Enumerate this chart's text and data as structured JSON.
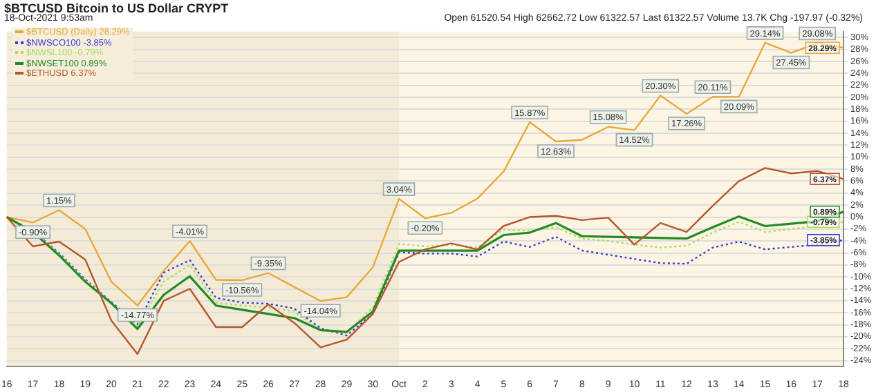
{
  "chart_data": {
    "type": "line",
    "title": "$BTCUSD Bitcoin to US Dollar CRYPT",
    "subtitle": "18-Oct-2021 9:53am",
    "annotations": [
      "Open 61520.54 High 62662.72 Low 61322.57 Last 61322.57 Volume 13.7K Chg -197.97 (-0.32%)"
    ],
    "categories": [
      "16",
      "17",
      "18",
      "19",
      "20",
      "21",
      "22",
      "23",
      "24",
      "25",
      "26",
      "27",
      "28",
      "29",
      "30",
      "Oct",
      "2",
      "3",
      "4",
      "5",
      "6",
      "7",
      "8",
      "9",
      "10",
      "11",
      "12",
      "13",
      "14",
      "15",
      "16",
      "17",
      "18"
    ],
    "series": [
      {
        "name": "$BTCUSD (Daily) 28.29%",
        "color": "#e8a93a",
        "line_style": "solid",
        "values": [
          0,
          -0.9,
          1.15,
          -2,
          -10.8,
          -14.77,
          -9,
          -4.01,
          -10.5,
          -10.56,
          -9.35,
          -11.7,
          -14.04,
          -13.4,
          -8.4,
          3.04,
          -0.2,
          0.7,
          3.1,
          7.6,
          15.87,
          12.63,
          12.9,
          15.08,
          14.52,
          20.3,
          17.26,
          20.11,
          20.09,
          29.14,
          27.45,
          29.08,
          28.29
        ],
        "value_labels": [
          null,
          "-0.90%",
          "1.15%",
          null,
          null,
          "-14.77%",
          null,
          "-4.01%",
          null,
          "-10.56%",
          "-9.35%",
          null,
          "-14.04%",
          null,
          null,
          "3.04%",
          "-0.20%",
          null,
          null,
          null,
          "15.87%",
          "12.63%",
          null,
          "15.08%",
          "14.52%",
          "20.30%",
          "17.26%",
          "20.11%",
          "20.09%",
          "29.14%",
          "27.45%",
          "29.08%",
          "28.29%"
        ]
      },
      {
        "name": "$NWSCO100 -3.85%",
        "color": "#3a3ad8",
        "line_style": "dotted",
        "values": [
          0,
          -2.3,
          -6,
          -10.4,
          -14.2,
          -17.9,
          -9.3,
          -7.2,
          -13.5,
          -14.3,
          -14.5,
          -15.3,
          -18.6,
          -19.8,
          -16.2,
          -5.9,
          -6.1,
          -6.1,
          -6.6,
          -4.1,
          -5,
          -3.3,
          -5.6,
          -6.3,
          -7,
          -7.7,
          -7.8,
          -5.1,
          -4.1,
          -5.4,
          -5,
          -4.6,
          -3.85
        ],
        "value_labels": [
          null,
          null,
          null,
          null,
          null,
          null,
          null,
          null,
          null,
          null,
          null,
          null,
          null,
          null,
          null,
          null,
          null,
          null,
          null,
          null,
          null,
          null,
          null,
          null,
          null,
          null,
          null,
          null,
          null,
          null,
          null,
          null,
          "-3.85%"
        ]
      },
      {
        "name": "$NWSL100 -0.79%",
        "color": "#a8dc5a",
        "line_style": "dotted",
        "values": [
          0,
          -2.4,
          -6.2,
          -10.6,
          -14.3,
          -18.3,
          -10.8,
          -8,
          -14.3,
          -14.8,
          -15.1,
          -15.8,
          -18.9,
          -19.4,
          -15.1,
          -4.5,
          -4.9,
          -4.6,
          -5.1,
          -2.1,
          -2.3,
          -1.7,
          -3.6,
          -4,
          -4.6,
          -5.1,
          -4.8,
          -2.6,
          -0.8,
          -2.5,
          -2,
          -1.5,
          -0.79
        ],
        "value_labels": [
          null,
          null,
          null,
          null,
          null,
          null,
          null,
          null,
          null,
          null,
          null,
          null,
          null,
          null,
          null,
          null,
          null,
          null,
          null,
          null,
          null,
          null,
          null,
          null,
          null,
          null,
          null,
          null,
          null,
          null,
          null,
          null,
          "-0.79%"
        ]
      },
      {
        "name": "$NWSET100 0.89%",
        "color": "#238a23",
        "line_style": "solid",
        "values": [
          0,
          -2.5,
          -6.4,
          -10.8,
          -14.4,
          -18.7,
          -13,
          -9.9,
          -14.8,
          -15.5,
          -16.2,
          -16.9,
          -18.9,
          -19.2,
          -15.8,
          -5.6,
          -5.6,
          -5.6,
          -5.6,
          -3,
          -2.6,
          -1,
          -3.2,
          -3.3,
          -3.4,
          -3.5,
          -3.6,
          -1.7,
          0.1,
          -1.5,
          -1.1,
          -0.7,
          0.89
        ],
        "value_labels": [
          null,
          null,
          null,
          null,
          null,
          null,
          null,
          null,
          null,
          null,
          null,
          null,
          null,
          null,
          null,
          null,
          null,
          null,
          null,
          null,
          null,
          null,
          null,
          null,
          null,
          null,
          null,
          null,
          null,
          null,
          null,
          null,
          "0.89%"
        ]
      },
      {
        "name": "$ETHUSD 6.37%",
        "color": "#b5562e",
        "line_style": "solid",
        "values": [
          0,
          -4.9,
          -4.1,
          -7.1,
          -17.3,
          -22.9,
          -14,
          -12,
          -18.4,
          -18.4,
          -14.6,
          -17.7,
          -21.8,
          -20.5,
          -16.2,
          -7.5,
          -5.4,
          -4.4,
          -5.4,
          -1.5,
          0,
          0.2,
          -0.5,
          -0.1,
          -4.6,
          -1,
          -2.5,
          1.9,
          6,
          8.2,
          7.3,
          7.7,
          6.37
        ],
        "value_labels": [
          null,
          null,
          null,
          null,
          null,
          null,
          null,
          null,
          null,
          null,
          null,
          null,
          null,
          null,
          null,
          null,
          null,
          null,
          null,
          null,
          null,
          null,
          null,
          null,
          null,
          null,
          null,
          null,
          null,
          null,
          null,
          null,
          "6.37%"
        ]
      }
    ],
    "ylim": [
      -25,
      31
    ],
    "yticks": [
      {
        "value": -24,
        "label": "-24%"
      },
      {
        "value": -22,
        "label": "-22%"
      },
      {
        "value": -20,
        "label": "-20%"
      },
      {
        "value": -18,
        "label": "-18%"
      },
      {
        "value": -16,
        "label": "-16%"
      },
      {
        "value": -14,
        "label": "-14%"
      },
      {
        "value": -12,
        "label": "-12%"
      },
      {
        "value": -10,
        "label": "-10%"
      },
      {
        "value": -8,
        "label": "-8%"
      },
      {
        "value": -6,
        "label": "-6%"
      },
      {
        "value": -4,
        "label": "-4%"
      },
      {
        "value": -2,
        "label": "-2%"
      },
      {
        "value": 0,
        "label": "0%"
      },
      {
        "value": 2,
        "label": "2%"
      },
      {
        "value": 4,
        "label": "4%"
      },
      {
        "value": 6,
        "label": "6%"
      },
      {
        "value": 8,
        "label": "8%"
      },
      {
        "value": 10,
        "label": "10%"
      },
      {
        "value": 12,
        "label": "12%"
      },
      {
        "value": 14,
        "label": "14%"
      },
      {
        "value": 16,
        "label": "16%"
      },
      {
        "value": 18,
        "label": "18%"
      },
      {
        "value": 20,
        "label": "20%"
      },
      {
        "value": 22,
        "label": "22%"
      },
      {
        "value": 24,
        "label": "24%"
      },
      {
        "value": 26,
        "label": "26%"
      },
      {
        "value": 28,
        "label": "28%"
      },
      {
        "value": 30,
        "label": "30%"
      }
    ],
    "bands": [
      {
        "axis": "x",
        "from": "16",
        "to": "Oct",
        "color": "#f3ebd6"
      }
    ],
    "grid": "y",
    "legend": "top left",
    "marker": "none"
  }
}
